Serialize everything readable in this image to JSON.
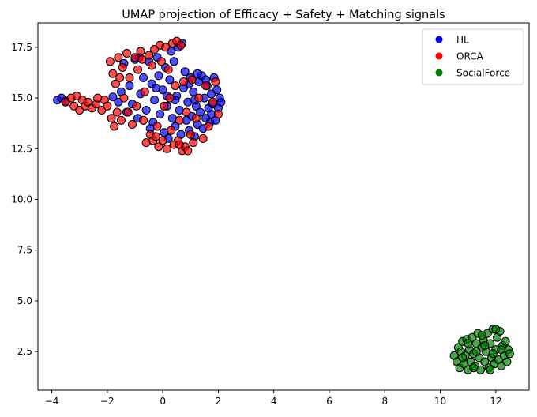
{
  "chart_data": {
    "type": "scatter",
    "title": "UMAP projection of Efficacy + Safety + Matching signals",
    "xlabel": "",
    "ylabel": "",
    "xlim": [
      -4.5,
      13.2
    ],
    "ylim": [
      0.6,
      18.7
    ],
    "xticks": [
      -4,
      -2,
      0,
      2,
      4,
      6,
      8,
      10,
      12
    ],
    "yticks": [
      2.5,
      5.0,
      7.5,
      10.0,
      12.5,
      15.0,
      17.5
    ],
    "xtick_labels": [
      "−4",
      "−2",
      "0",
      "2",
      "4",
      "6",
      "8",
      "10",
      "12"
    ],
    "ytick_labels": [
      "2.5",
      "5.0",
      "7.5",
      "10.0",
      "12.5",
      "15.0",
      "17.5"
    ],
    "grid": false,
    "legend_position": "top-right",
    "series": [
      {
        "name": "HL",
        "color": "#0000ff",
        "points": [
          [
            -3.8,
            14.9
          ],
          [
            -3.65,
            15.0
          ],
          [
            -3.5,
            14.85
          ],
          [
            -1.8,
            15.05
          ],
          [
            -1.6,
            14.8
          ],
          [
            -1.5,
            15.3
          ],
          [
            -1.3,
            14.3
          ],
          [
            -1.2,
            15.6
          ],
          [
            -1.1,
            14.7
          ],
          [
            -1.0,
            16.9
          ],
          [
            -0.9,
            14.0
          ],
          [
            -0.8,
            15.2
          ],
          [
            -0.7,
            16.0
          ],
          [
            -0.6,
            14.4
          ],
          [
            -0.5,
            16.8
          ],
          [
            -0.4,
            15.7
          ],
          [
            -0.35,
            13.8
          ],
          [
            -0.3,
            14.9
          ],
          [
            -0.2,
            17.0
          ],
          [
            -0.15,
            16.1
          ],
          [
            -0.1,
            14.2
          ],
          [
            0.0,
            15.4
          ],
          [
            0.05,
            13.3
          ],
          [
            0.1,
            16.5
          ],
          [
            0.15,
            14.6
          ],
          [
            0.2,
            13.0
          ],
          [
            0.25,
            15.9
          ],
          [
            0.3,
            17.3
          ],
          [
            0.35,
            14.0
          ],
          [
            0.4,
            16.8
          ],
          [
            0.45,
            13.6
          ],
          [
            0.5,
            15.1
          ],
          [
            0.55,
            17.5
          ],
          [
            0.6,
            14.4
          ],
          [
            0.65,
            13.2
          ],
          [
            0.7,
            17.7
          ],
          [
            0.75,
            15.5
          ],
          [
            0.8,
            16.3
          ],
          [
            0.85,
            13.9
          ],
          [
            0.9,
            14.8
          ],
          [
            0.95,
            13.4
          ],
          [
            1.0,
            16.0
          ],
          [
            1.05,
            14.1
          ],
          [
            1.1,
            15.3
          ],
          [
            1.15,
            13.1
          ],
          [
            1.2,
            14.6
          ],
          [
            1.25,
            13.7
          ],
          [
            1.3,
            15.8
          ],
          [
            1.35,
            14.3
          ],
          [
            1.4,
            16.1
          ],
          [
            1.45,
            13.5
          ],
          [
            1.5,
            15.0
          ],
          [
            1.55,
            14.0
          ],
          [
            1.6,
            15.6
          ],
          [
            1.65,
            14.5
          ],
          [
            1.7,
            13.8
          ],
          [
            1.75,
            15.2
          ],
          [
            1.8,
            14.7
          ],
          [
            1.85,
            16.0
          ],
          [
            1.9,
            13.9
          ],
          [
            1.95,
            15.4
          ],
          [
            2.0,
            14.5
          ],
          [
            2.05,
            15.0
          ],
          [
            2.1,
            14.8
          ],
          [
            1.55,
            15.9
          ],
          [
            1.25,
            16.2
          ],
          [
            0.95,
            15.7
          ],
          [
            0.15,
            15.1
          ],
          [
            -0.45,
            13.5
          ],
          [
            -1.4,
            16.7
          ],
          [
            -0.85,
            17.0
          ],
          [
            -0.25,
            15.5
          ],
          [
            0.45,
            14.9
          ],
          [
            1.75,
            14.2
          ],
          [
            1.15,
            14.9
          ]
        ]
      },
      {
        "name": "ORCA",
        "color": "#ff0000",
        "points": [
          [
            -3.5,
            14.8
          ],
          [
            -3.3,
            15.0
          ],
          [
            -3.2,
            14.6
          ],
          [
            -3.1,
            15.1
          ],
          [
            -3.0,
            14.4
          ],
          [
            -2.9,
            14.9
          ],
          [
            -2.8,
            14.6
          ],
          [
            -2.7,
            14.8
          ],
          [
            -2.55,
            14.5
          ],
          [
            -2.4,
            14.7
          ],
          [
            -2.2,
            14.4
          ],
          [
            -2.1,
            14.9
          ],
          [
            -2.0,
            14.6
          ],
          [
            -1.9,
            16.8
          ],
          [
            -1.85,
            14.0
          ],
          [
            -1.8,
            16.2
          ],
          [
            -1.75,
            13.6
          ],
          [
            -1.7,
            15.7
          ],
          [
            -1.65,
            14.3
          ],
          [
            -1.6,
            17.0
          ],
          [
            -1.5,
            13.9
          ],
          [
            -1.45,
            16.5
          ],
          [
            -1.4,
            15.0
          ],
          [
            -1.3,
            17.2
          ],
          [
            -1.2,
            16.0
          ],
          [
            -1.1,
            13.7
          ],
          [
            -1.0,
            17.0
          ],
          [
            -0.95,
            14.6
          ],
          [
            -0.9,
            16.4
          ],
          [
            -0.8,
            17.3
          ],
          [
            -0.7,
            13.9
          ],
          [
            -0.65,
            15.3
          ],
          [
            -0.6,
            12.8
          ],
          [
            -0.5,
            17.1
          ],
          [
            -0.45,
            13.2
          ],
          [
            -0.4,
            16.6
          ],
          [
            -0.35,
            12.9
          ],
          [
            -0.3,
            17.4
          ],
          [
            -0.2,
            13.6
          ],
          [
            -0.15,
            12.6
          ],
          [
            -0.1,
            17.6
          ],
          [
            0.0,
            12.9
          ],
          [
            0.05,
            14.6
          ],
          [
            0.1,
            17.5
          ],
          [
            0.15,
            12.5
          ],
          [
            0.2,
            16.4
          ],
          [
            0.3,
            13.4
          ],
          [
            0.35,
            17.7
          ],
          [
            0.4,
            12.7
          ],
          [
            0.45,
            15.6
          ],
          [
            0.5,
            17.8
          ],
          [
            0.55,
            12.9
          ],
          [
            0.6,
            13.9
          ],
          [
            0.65,
            17.6
          ],
          [
            0.7,
            12.4
          ],
          [
            0.75,
            15.8
          ],
          [
            0.8,
            12.6
          ],
          [
            0.85,
            14.3
          ],
          [
            0.9,
            12.4
          ],
          [
            1.0,
            13.2
          ],
          [
            1.05,
            15.9
          ],
          [
            1.1,
            12.8
          ],
          [
            1.2,
            14.0
          ],
          [
            1.3,
            15.0
          ],
          [
            1.45,
            13.0
          ],
          [
            1.55,
            15.6
          ],
          [
            1.65,
            13.6
          ],
          [
            1.8,
            14.8
          ],
          [
            1.9,
            15.8
          ],
          [
            2.0,
            14.2
          ],
          [
            -2.35,
            15.0
          ],
          [
            -1.25,
            14.3
          ],
          [
            -0.75,
            16.9
          ],
          [
            -0.05,
            16.8
          ],
          [
            0.25,
            15.0
          ],
          [
            -1.55,
            16.0
          ],
          [
            -0.25,
            13.1
          ],
          [
            0.6,
            12.7
          ]
        ]
      },
      {
        "name": "SocialForce",
        "color": "#008000",
        "points": [
          [
            10.5,
            2.3
          ],
          [
            10.6,
            2.0
          ],
          [
            10.65,
            2.7
          ],
          [
            10.7,
            1.7
          ],
          [
            10.75,
            2.5
          ],
          [
            10.8,
            3.0
          ],
          [
            10.85,
            1.9
          ],
          [
            10.9,
            2.3
          ],
          [
            10.95,
            3.1
          ],
          [
            11.0,
            1.6
          ],
          [
            11.05,
            2.6
          ],
          [
            11.1,
            2.0
          ],
          [
            11.15,
            3.2
          ],
          [
            11.2,
            2.4
          ],
          [
            11.25,
            1.8
          ],
          [
            11.3,
            2.9
          ],
          [
            11.35,
            3.4
          ],
          [
            11.4,
            2.2
          ],
          [
            11.45,
            1.6
          ],
          [
            11.5,
            2.7
          ],
          [
            11.55,
            3.1
          ],
          [
            11.6,
            2.0
          ],
          [
            11.65,
            2.5
          ],
          [
            11.7,
            3.4
          ],
          [
            11.75,
            1.7
          ],
          [
            11.8,
            2.9
          ],
          [
            11.85,
            2.2
          ],
          [
            11.9,
            3.6
          ],
          [
            11.95,
            1.9
          ],
          [
            12.0,
            2.6
          ],
          [
            12.05,
            3.2
          ],
          [
            12.1,
            2.1
          ],
          [
            12.15,
            3.5
          ],
          [
            12.2,
            1.8
          ],
          [
            12.25,
            2.8
          ],
          [
            12.3,
            2.3
          ],
          [
            12.35,
            3.0
          ],
          [
            12.4,
            2.0
          ],
          [
            12.45,
            2.6
          ],
          [
            12.5,
            2.4
          ],
          [
            11.0,
            2.9
          ],
          [
            11.3,
            2.5
          ],
          [
            11.6,
            2.8
          ],
          [
            11.9,
            2.4
          ],
          [
            12.2,
            2.6
          ],
          [
            11.2,
            1.7
          ],
          [
            11.8,
            1.6
          ],
          [
            12.0,
            3.6
          ],
          [
            10.8,
            2.2
          ],
          [
            11.5,
            3.3
          ]
        ]
      }
    ]
  }
}
